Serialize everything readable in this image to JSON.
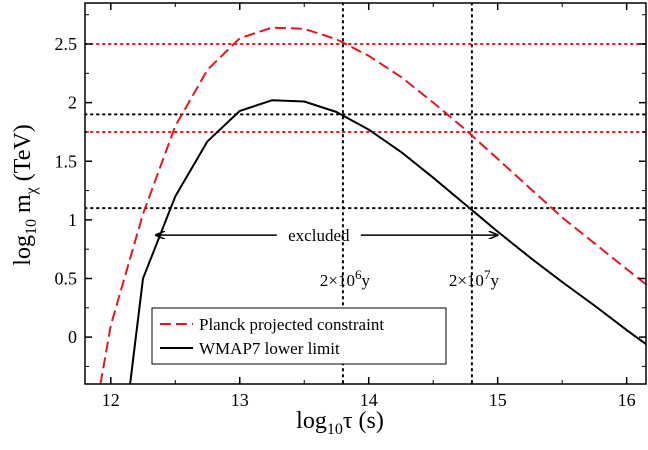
{
  "chart_data": {
    "type": "line",
    "xlabel": {
      "base": "log",
      "sub": "10",
      "sym": "τ",
      "unit": " (s)"
    },
    "ylabel": {
      "base": "log",
      "sub": "10",
      "m": " m",
      "msub": "χ",
      "unit": "  (TeV)"
    },
    "xlim": [
      11.8,
      16.15
    ],
    "ylim": [
      -0.4,
      2.85
    ],
    "xticks": [
      12,
      13,
      14,
      15,
      16
    ],
    "yticks": [
      0,
      0.5,
      1,
      1.5,
      2,
      2.5
    ],
    "series": [
      {
        "name": "Planck projected constraint",
        "color": "#e8141e",
        "style": "dashed",
        "x": [
          11.92,
          12.0,
          12.25,
          12.5,
          12.75,
          13.0,
          13.25,
          13.5,
          13.75,
          14.0,
          14.25,
          14.5,
          14.75,
          15.0,
          15.25,
          15.5,
          15.75,
          16.0,
          16.15
        ],
        "y": [
          -0.4,
          0.1,
          1.05,
          1.8,
          2.28,
          2.55,
          2.64,
          2.63,
          2.54,
          2.4,
          2.22,
          2.0,
          1.77,
          1.52,
          1.27,
          1.02,
          0.8,
          0.58,
          0.45
        ]
      },
      {
        "name": "WMAP7 lower limit",
        "color": "#000000",
        "style": "solid",
        "x": [
          12.15,
          12.25,
          12.5,
          12.75,
          13.0,
          13.25,
          13.5,
          13.75,
          14.0,
          14.25,
          14.5,
          14.75,
          15.0,
          15.25,
          15.5,
          15.75,
          16.0,
          16.15
        ],
        "y": [
          -0.4,
          0.5,
          1.2,
          1.67,
          1.93,
          2.02,
          2.01,
          1.92,
          1.77,
          1.58,
          1.36,
          1.13,
          0.9,
          0.68,
          0.47,
          0.27,
          0.06,
          -0.06
        ]
      }
    ],
    "hlines": [
      {
        "y": 2.5,
        "color": "#e8141e"
      },
      {
        "y": 1.75,
        "color": "#e8141e"
      },
      {
        "y": 1.9,
        "color": "#000000"
      },
      {
        "y": 1.1,
        "color": "#000000"
      }
    ],
    "vlines": [
      {
        "x": 13.8,
        "label_base": "2×10",
        "label_exp": "6",
        "label_unit": "y"
      },
      {
        "x": 14.8,
        "label_base": "2×10",
        "label_exp": "7",
        "label_unit": "y"
      }
    ],
    "excluded": {
      "label": "excluded",
      "x1": 12.35,
      "x2": 15.0,
      "y": 0.87
    },
    "legend": {
      "position": "bottom-left",
      "entries": [
        "Planck projected constraint",
        "WMAP7 lower limit"
      ]
    }
  }
}
